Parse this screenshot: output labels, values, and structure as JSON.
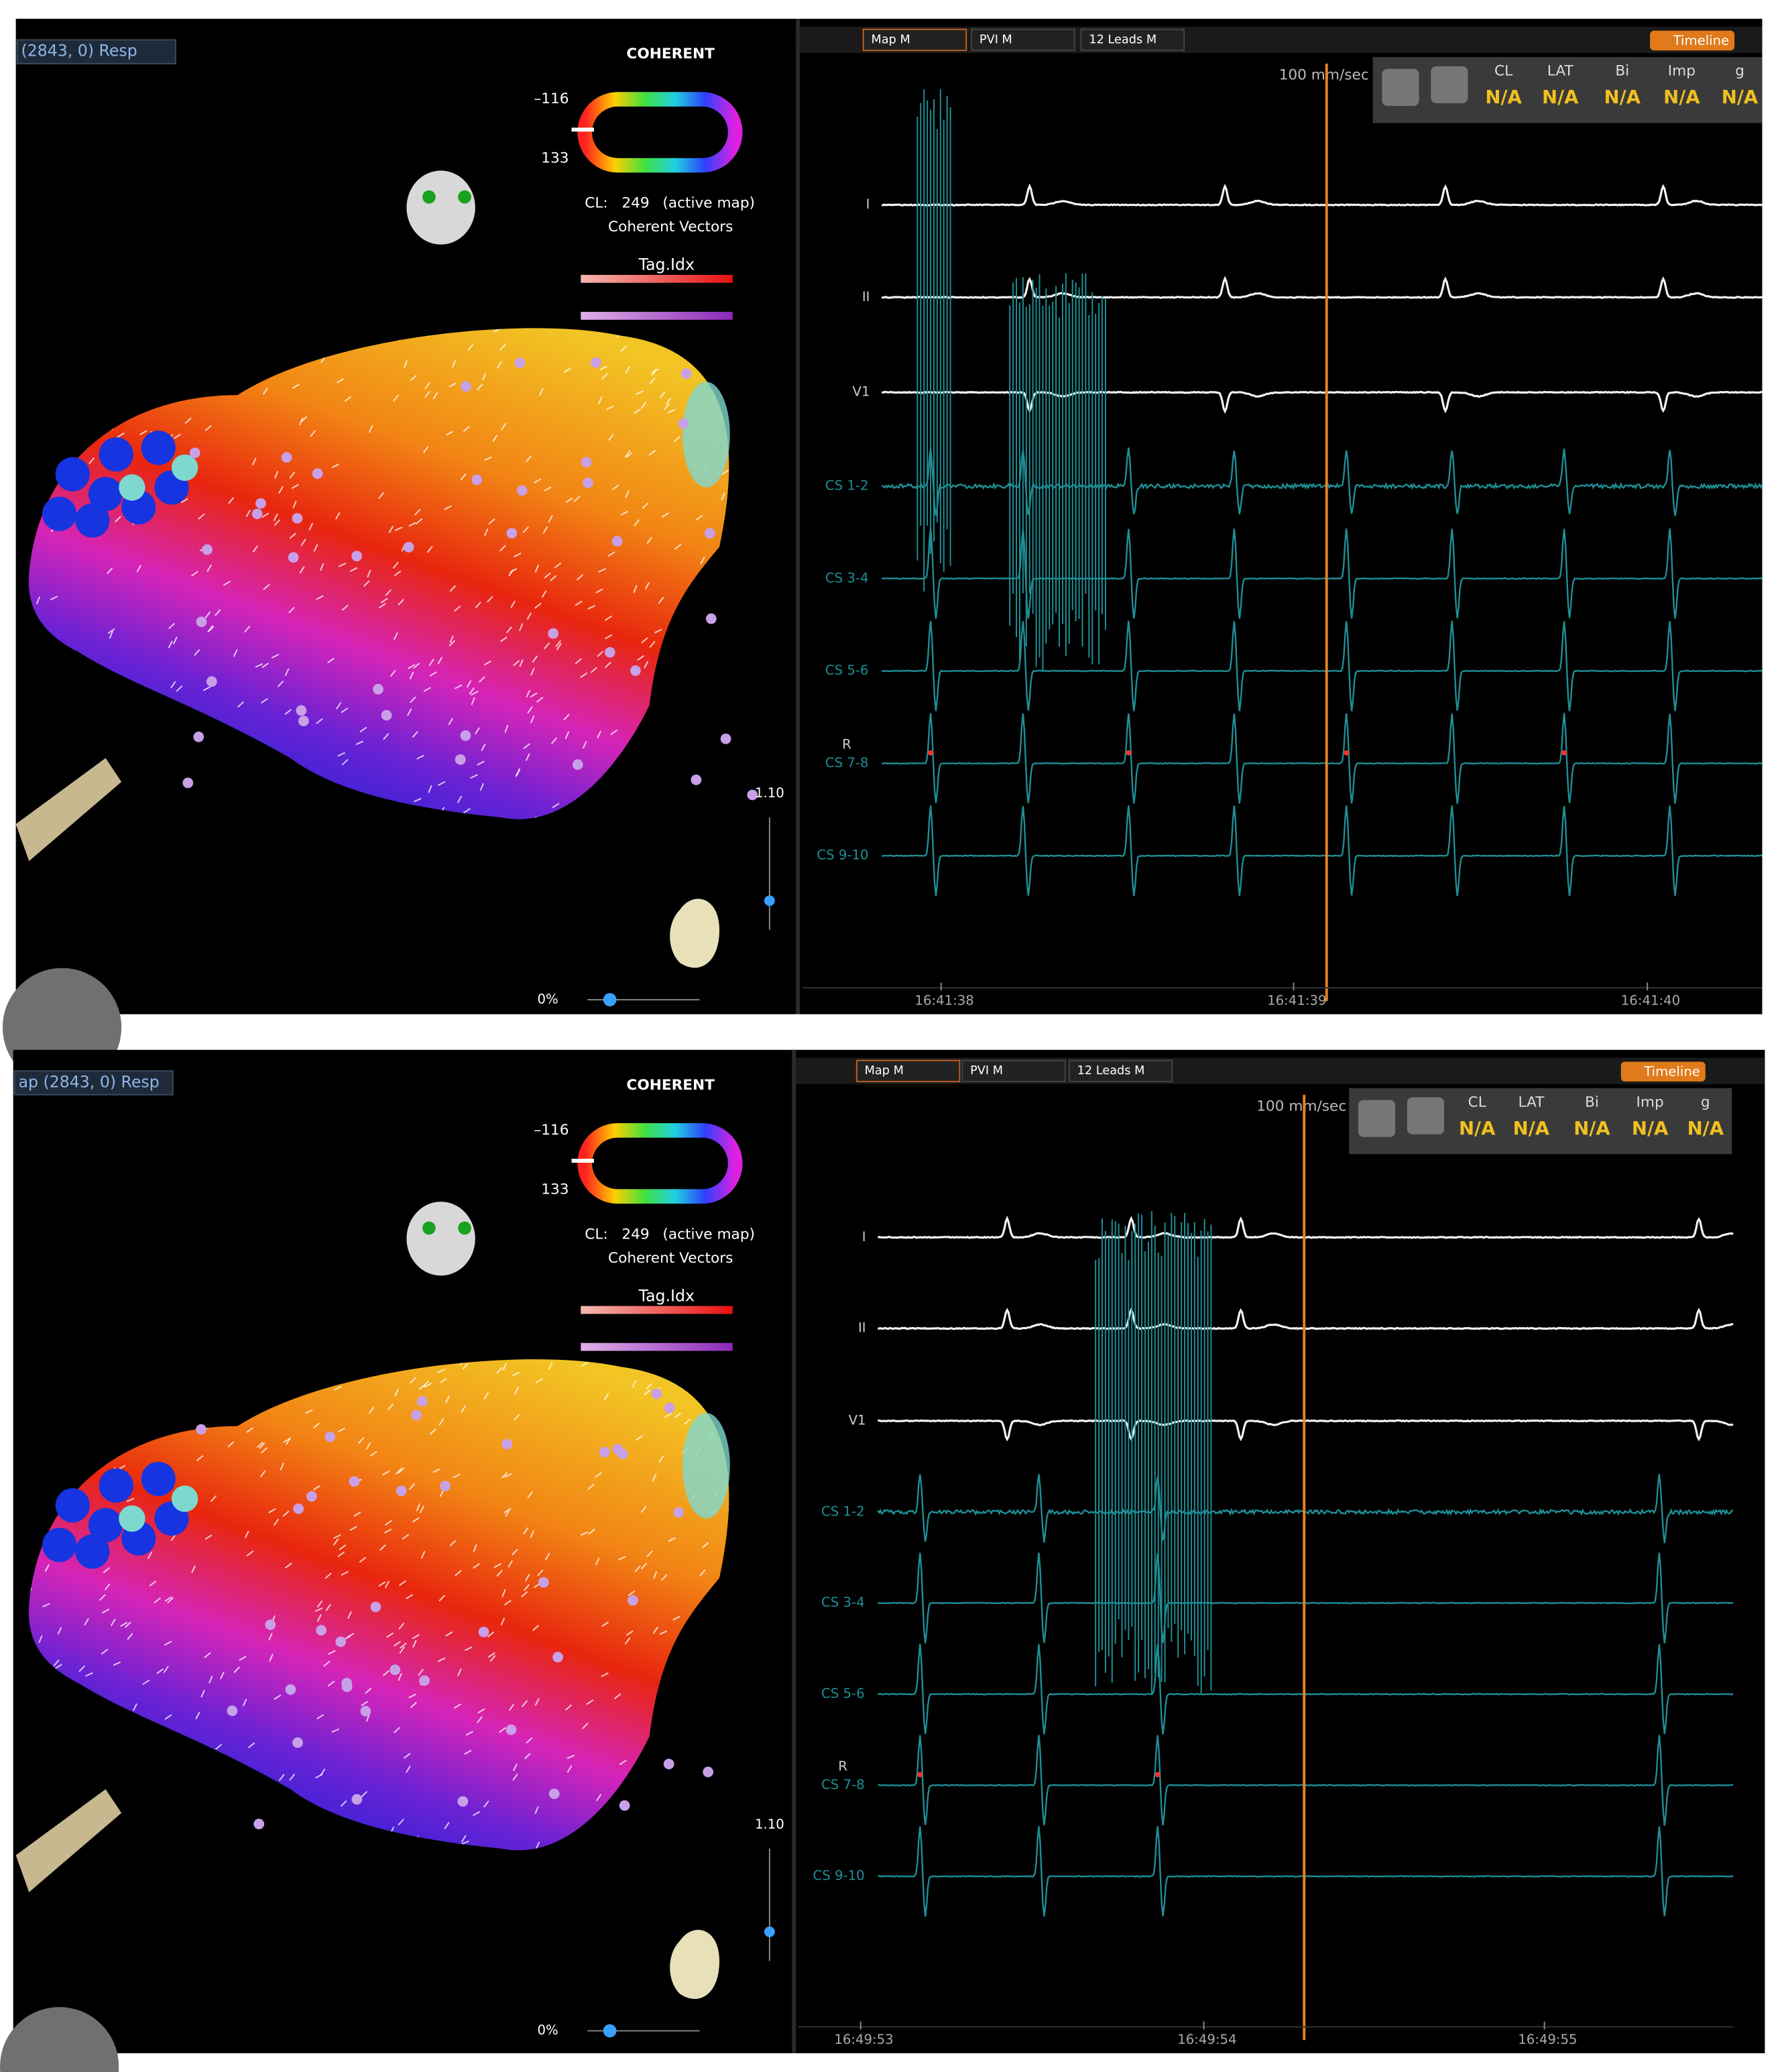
{
  "panels": [
    {
      "map_label": "(2843, 0) Resp",
      "map_title": "COHERENT",
      "scale_min": "–116",
      "scale_max": 133,
      "cl_label": "CL:",
      "cl_value": 249,
      "cl_note": "(active map)",
      "vectors": "Coherent Vectors",
      "tag": "Tag.Idx",
      "zoom": "1.10",
      "opacity": "0%",
      "toolbar": [
        "Map M",
        "PVI M",
        "12 Leads M"
      ],
      "timeline": "Timeline",
      "speed": "100 mm/sec",
      "stats": [
        {
          "label": "CL",
          "value": "N/A"
        },
        {
          "label": "LAT",
          "value": "N/A"
        },
        {
          "label": "Bi",
          "value": "N/A"
        },
        {
          "label": "Imp",
          "value": "N/A"
        },
        {
          "label": "g",
          "value": "N/A"
        }
      ],
      "channels": [
        "I",
        "II",
        "V1",
        "CS 1-2",
        "CS 3-4",
        "CS 5-6",
        "CS 7-8",
        "CS 9-10"
      ],
      "ref_marker": "R",
      "times": [
        "16:41:38",
        "16:41:39",
        "16:41:40"
      ]
    },
    {
      "map_label": "ap (2843, 0) Resp",
      "map_title": "COHERENT",
      "scale_min": "–116",
      "scale_max": 133,
      "cl_label": "CL:",
      "cl_value": 249,
      "cl_note": "(active map)",
      "vectors": "Coherent Vectors",
      "tag": "Tag.Idx",
      "zoom": "1.10",
      "opacity": "0%",
      "toolbar": [
        "Map M",
        "PVI M",
        "12 Leads M"
      ],
      "timeline": "Timeline",
      "speed": "100 mm/sec",
      "stats": [
        {
          "label": "CL",
          "value": "N/A"
        },
        {
          "label": "LAT",
          "value": "N/A"
        },
        {
          "label": "Bi",
          "value": "N/A"
        },
        {
          "label": "Imp",
          "value": "N/A"
        },
        {
          "label": "g",
          "value": "N/A"
        }
      ],
      "channels": [
        "I",
        "II",
        "V1",
        "CS 1-2",
        "CS 3-4",
        "CS 5-6",
        "CS 7-8",
        "CS 9-10"
      ],
      "ref_marker": "R",
      "times": [
        "16:49:53",
        "16:49:54",
        "16:49:55"
      ]
    }
  ]
}
